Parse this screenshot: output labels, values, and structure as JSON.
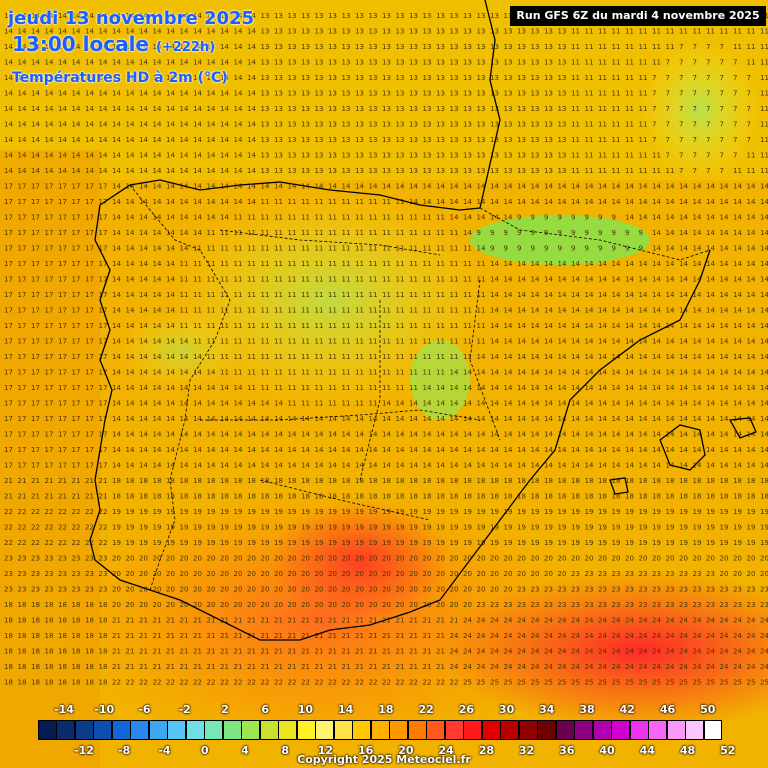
{
  "header": {
    "date_line": "jeudi 13 novembre 2025",
    "time_line": "13:00 locale",
    "offset": "(+222h)",
    "variable": "Températures HD à 2m (°C)",
    "run_info": "Run GFS 6Z du mardi 4 novembre 2025"
  },
  "legend": {
    "top_labels": [
      "-14",
      "-10",
      "-6",
      "-2",
      "2",
      "6",
      "10",
      "14",
      "18",
      "22",
      "26",
      "30",
      "34",
      "38",
      "42",
      "46",
      "50"
    ],
    "bottom_labels": [
      "-12",
      "-8",
      "-4",
      "0",
      "4",
      "8",
      "12",
      "16",
      "20",
      "24",
      "28",
      "32",
      "36",
      "40",
      "44",
      "48",
      "52"
    ],
    "colors": [
      "#071b53",
      "#0b2a6e",
      "#0c3b8b",
      "#0d4fb0",
      "#1166d8",
      "#2a86f0",
      "#3ea7f4",
      "#55c4f7",
      "#6ee0e5",
      "#74e9b4",
      "#7de681",
      "#9ce64f",
      "#c7e12e",
      "#e9e51f",
      "#fff226",
      "#fff370",
      "#ffe24a",
      "#ffc800",
      "#ffb000",
      "#ff9700",
      "#ff7a00",
      "#ff5a1a",
      "#ff3b30",
      "#ff1a1a",
      "#e00000",
      "#b80000",
      "#900000",
      "#6e0000",
      "#6b0050",
      "#8a0080",
      "#b000b0",
      "#d000d0",
      "#ee33ee",
      "#f766f7",
      "#fb99fb",
      "#fdc7fd",
      "#ffffff"
    ]
  },
  "copyright": "Copyright 2025 Meteociel.fr"
}
